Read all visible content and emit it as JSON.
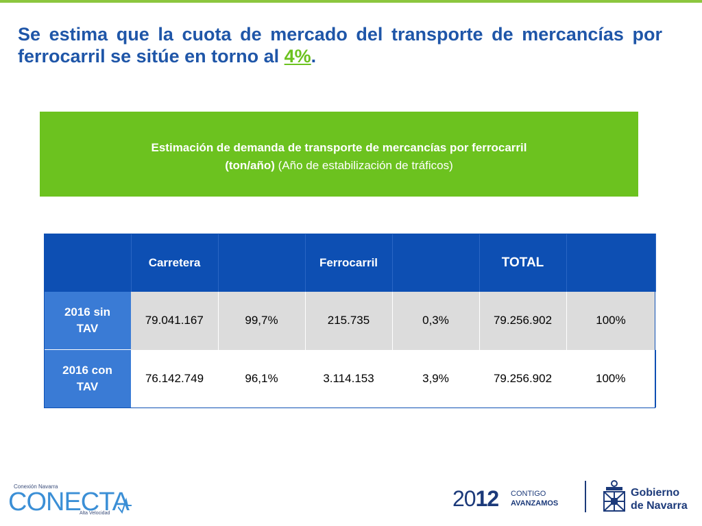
{
  "headline": {
    "text": "Se estima que la cuota de mercado del transporte de mercancías por ferrocarril se sitúe en torno al ",
    "highlight": "4%",
    "end": "."
  },
  "box": {
    "line1": "Estimación de demanda de transporte de mercancías por ferrocarril",
    "line2_bold": "(ton/año)",
    "line2_rest": " (Año de estabilización de tráficos)"
  },
  "table": {
    "headers": [
      "",
      "Carretera",
      "",
      "Ferrocarril",
      "",
      "TOTAL",
      ""
    ],
    "rows": [
      {
        "label_line1": "2016 sin",
        "label_line2": "TAV",
        "cells": [
          "79.041.167",
          "99,7%",
          "215.735",
          "0,3%",
          "79.256.902",
          "100%"
        ]
      },
      {
        "label_line1": "2016 con",
        "label_line2": "TAV",
        "cells": [
          "76.142.749",
          "96,1%",
          "3.114.153",
          "3,9%",
          "79.256.902",
          "100%"
        ]
      }
    ]
  },
  "logos": {
    "conecta_small": "Conexión Navarra",
    "conecta_big": "CONECTA",
    "conecta_sub": "Alta Velocidad",
    "year_a": "20",
    "year_b": "12",
    "tag1": "CONTIGO",
    "tag2": "AVANZAMOS",
    "gov1": "Gobierno",
    "gov2": "de Navarra"
  },
  "colors": {
    "title_blue": "#1f56a8",
    "accent_green": "#6cc21f",
    "header_blue": "#0d4fb3",
    "row_label_blue": "#3a7bd5"
  }
}
